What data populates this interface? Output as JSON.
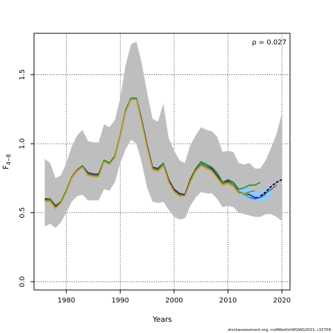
{
  "chart_data": {
    "type": "line",
    "ylabel_main": "F",
    "ylabel_sub": "4−8",
    "xlabel": "Years",
    "annotation": "ρ = 0.027",
    "footer": "stockassessment.org, codWestIntWGWG2021, r15709",
    "xlim": [
      1974,
      2021.5
    ],
    "ylim": [
      -0.06,
      1.8
    ],
    "x_ticks": [
      {
        "value": 1980,
        "label": "1980"
      },
      {
        "value": 1990,
        "label": "1990"
      },
      {
        "value": 2000,
        "label": "2000"
      },
      {
        "value": 2010,
        "label": "2010"
      },
      {
        "value": 2020,
        "label": "2020"
      }
    ],
    "y_ticks": [
      {
        "value": 0.0,
        "label": "0.0"
      },
      {
        "value": 0.5,
        "label": "0.5"
      },
      {
        "value": 1.0,
        "label": "1.0"
      },
      {
        "value": 1.5,
        "label": "1.5"
      }
    ],
    "grid": true,
    "colors": {
      "band": "#bebebe",
      "band_recent": "#87cefa",
      "series": [
        "#1a1a7a",
        "#1fa58a",
        "#1a8c3c",
        "#8a6a2a",
        "#d4a017",
        "#6a3fb0",
        "#000000"
      ],
      "final": "#000000"
    },
    "band": {
      "x": [
        1976,
        1977,
        1978,
        1979,
        1980,
        1981,
        1982,
        1983,
        1984,
        1985,
        1986,
        1987,
        1988,
        1989,
        1990,
        1991,
        1992,
        1993,
        1994,
        1995,
        1996,
        1997,
        1998,
        1999,
        2000,
        2001,
        2002,
        2003,
        2004,
        2005,
        2006,
        2007,
        2008,
        2009,
        2010,
        2011,
        2012,
        2013,
        2014,
        2015,
        2016,
        2017,
        2018,
        2019,
        2020
      ],
      "upper": [
        0.89,
        0.86,
        0.75,
        0.77,
        0.86,
        0.98,
        1.06,
        1.1,
        1.02,
        1.01,
        1.01,
        1.14,
        1.12,
        1.17,
        1.33,
        1.57,
        1.72,
        1.74,
        1.58,
        1.37,
        1.18,
        1.16,
        1.29,
        1.04,
        0.95,
        0.88,
        0.86,
        0.99,
        1.06,
        1.12,
        1.1,
        1.09,
        1.05,
        0.94,
        0.95,
        0.94,
        0.86,
        0.85,
        0.86,
        0.82,
        0.82,
        0.88,
        0.97,
        1.07,
        1.22
      ],
      "lower": [
        0.4,
        0.42,
        0.39,
        0.43,
        0.5,
        0.58,
        0.62,
        0.63,
        0.59,
        0.59,
        0.59,
        0.67,
        0.66,
        0.72,
        0.86,
        0.96,
        1.03,
        1.0,
        0.86,
        0.68,
        0.58,
        0.57,
        0.58,
        0.52,
        0.47,
        0.45,
        0.46,
        0.55,
        0.61,
        0.65,
        0.64,
        0.64,
        0.6,
        0.54,
        0.55,
        0.54,
        0.5,
        0.49,
        0.48,
        0.47,
        0.47,
        0.49,
        0.49,
        0.47,
        0.44
      ]
    },
    "band_recent": {
      "x": [
        2012,
        2013,
        2014,
        2015,
        2016,
        2017,
        2018
      ],
      "upper": [
        0.66,
        0.67,
        0.68,
        0.66,
        0.65,
        0.67,
        0.7
      ],
      "lower": [
        0.62,
        0.61,
        0.6,
        0.58,
        0.58,
        0.59,
        0.62
      ]
    },
    "series": [
      {
        "x": [
          1976,
          1977,
          1978,
          1979,
          1980,
          1981,
          1982,
          1983,
          1984,
          1985,
          1986,
          1987,
          1988,
          1989,
          1990,
          1991,
          1992,
          1993,
          1994,
          1995,
          1996,
          1997,
          1998,
          1999,
          2000,
          2001,
          2002,
          2003,
          2004,
          2005,
          2006,
          2007,
          2008,
          2009,
          2010,
          2011,
          2012,
          2013,
          2014,
          2015,
          2016
        ],
        "y": [
          0.6,
          0.6,
          0.55,
          0.58,
          0.66,
          0.76,
          0.81,
          0.84,
          0.79,
          0.78,
          0.78,
          0.88,
          0.86,
          0.91,
          1.06,
          1.24,
          1.33,
          1.33,
          1.17,
          0.99,
          0.83,
          0.82,
          0.86,
          0.74,
          0.67,
          0.64,
          0.63,
          0.74,
          0.82,
          0.86,
          0.84,
          0.82,
          0.77,
          0.72,
          0.73,
          0.72,
          0.65,
          0.64,
          0.63,
          0.61,
          0.61
        ]
      },
      {
        "x": [
          1976,
          1977,
          1978,
          1979,
          1980,
          1981,
          1982,
          1983,
          1984,
          1985,
          1986,
          1987,
          1988,
          1989,
          1990,
          1991,
          1992,
          1993,
          1994,
          1995,
          1996,
          1997,
          1998,
          1999,
          2000,
          2001,
          2002,
          2003,
          2004,
          2005,
          2006,
          2007,
          2008,
          2009,
          2010,
          2011,
          2012,
          2013,
          2014,
          2015,
          2016,
          2017
        ],
        "y": [
          0.59,
          0.59,
          0.54,
          0.57,
          0.66,
          0.76,
          0.81,
          0.84,
          0.78,
          0.77,
          0.77,
          0.88,
          0.86,
          0.9,
          1.06,
          1.25,
          1.33,
          1.33,
          1.16,
          0.98,
          0.82,
          0.81,
          0.86,
          0.73,
          0.66,
          0.63,
          0.62,
          0.73,
          0.81,
          0.86,
          0.84,
          0.81,
          0.76,
          0.71,
          0.72,
          0.71,
          0.65,
          0.63,
          0.61,
          0.6,
          0.61,
          0.63
        ]
      },
      {
        "x": [
          1976,
          1977,
          1978,
          1979,
          1980,
          1981,
          1982,
          1983,
          1984,
          1985,
          1986,
          1987,
          1988,
          1989,
          1990,
          1991,
          1992,
          1993,
          1994,
          1995,
          1996,
          1997,
          1998,
          1999,
          2000,
          2001,
          2002,
          2003,
          2004,
          2005,
          2006,
          2007,
          2008,
          2009,
          2010,
          2011,
          2012,
          2013,
          2014,
          2015,
          2016
        ],
        "y": [
          0.59,
          0.6,
          0.54,
          0.58,
          0.66,
          0.76,
          0.81,
          0.84,
          0.78,
          0.77,
          0.77,
          0.88,
          0.86,
          0.91,
          1.06,
          1.24,
          1.33,
          1.33,
          1.16,
          0.98,
          0.82,
          0.81,
          0.85,
          0.73,
          0.66,
          0.63,
          0.62,
          0.73,
          0.82,
          0.87,
          0.85,
          0.83,
          0.79,
          0.72,
          0.74,
          0.72,
          0.67,
          0.68,
          0.7,
          0.7,
          0.72
        ]
      },
      {
        "x": [
          1976,
          1977,
          1978,
          1979,
          1980,
          1981,
          1982,
          1983,
          1984,
          1985,
          1986,
          1987,
          1988,
          1989,
          1990,
          1991,
          1992,
          1993,
          1994,
          1995,
          1996,
          1997,
          1998,
          1999,
          2000,
          2001,
          2002,
          2003,
          2004,
          2005,
          2006,
          2007,
          2008,
          2009,
          2010,
          2011,
          2012,
          2013,
          2014,
          2015
        ],
        "y": [
          0.59,
          0.59,
          0.54,
          0.57,
          0.65,
          0.76,
          0.81,
          0.83,
          0.78,
          0.77,
          0.77,
          0.87,
          0.85,
          0.9,
          1.05,
          1.23,
          1.32,
          1.32,
          1.15,
          0.98,
          0.82,
          0.81,
          0.85,
          0.73,
          0.66,
          0.63,
          0.62,
          0.73,
          0.81,
          0.85,
          0.83,
          0.81,
          0.76,
          0.71,
          0.72,
          0.7,
          0.65,
          0.64,
          0.65,
          0.66
        ]
      },
      {
        "x": [
          1976,
          1977,
          1978,
          1979,
          1980,
          1981,
          1982,
          1983,
          1984,
          1985,
          1986,
          1987,
          1988,
          1989,
          1990,
          1991,
          1992,
          1993,
          1994,
          1995,
          1996,
          1997,
          1998,
          1999,
          2000,
          2001,
          2002,
          2003,
          2004,
          2005,
          2006,
          2007,
          2008,
          2009,
          2010,
          2011,
          2012,
          2013,
          2014
        ],
        "y": [
          0.58,
          0.58,
          0.53,
          0.57,
          0.65,
          0.75,
          0.8,
          0.83,
          0.77,
          0.76,
          0.76,
          0.87,
          0.85,
          0.9,
          1.05,
          1.23,
          1.32,
          1.32,
          1.15,
          0.97,
          0.81,
          0.8,
          0.84,
          0.72,
          0.65,
          0.62,
          0.62,
          0.72,
          0.8,
          0.84,
          0.82,
          0.8,
          0.75,
          0.7,
          0.71,
          0.69,
          0.64,
          0.64,
          0.64
        ]
      },
      {
        "x": [
          2014,
          2015,
          2016,
          2017,
          2018,
          2019
        ],
        "y": [
          0.61,
          0.6,
          0.61,
          0.64,
          0.67,
          0.7
        ]
      }
    ],
    "final_series": {
      "x": [
        2016,
        2017,
        2018,
        2019,
        2020
      ],
      "y": [
        0.62,
        0.65,
        0.69,
        0.72,
        0.74
      ]
    }
  }
}
